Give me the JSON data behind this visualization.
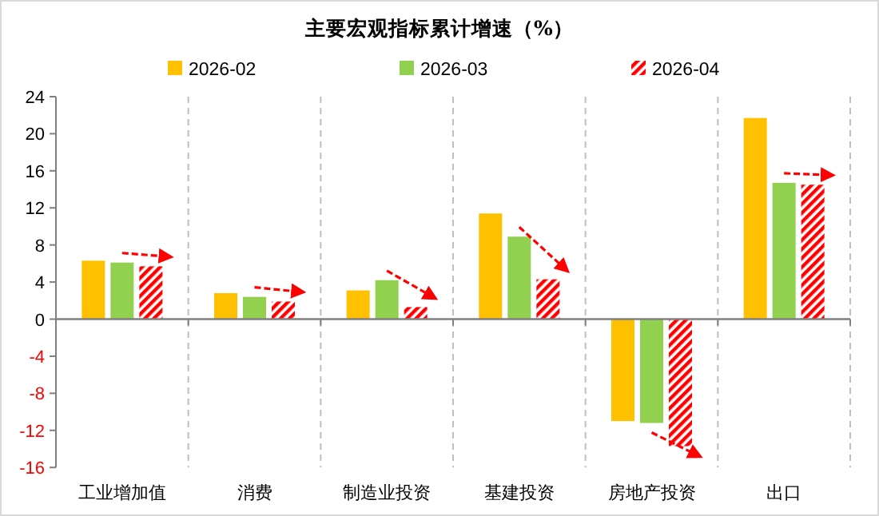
{
  "chart_data": {
    "type": "bar",
    "title": "主要宏观指标累计增速（%）",
    "categories": [
      "工业增加值",
      "消费",
      "制造业投资",
      "基建投资",
      "房地产投资",
      "出口"
    ],
    "series": [
      {
        "name": "2026-02",
        "color": "#ffc000",
        "values": [
          6.3,
          2.8,
          3.1,
          11.4,
          -11.0,
          21.7
        ]
      },
      {
        "name": "2026-03",
        "color": "#92d050",
        "values": [
          6.1,
          2.4,
          4.2,
          8.9,
          -11.2,
          14.7
        ]
      },
      {
        "name": "2026-04",
        "color": "#ff0000",
        "values": [
          5.7,
          1.9,
          1.3,
          4.3,
          -13.7,
          14.5
        ]
      }
    ],
    "ylim": [
      -16,
      24
    ],
    "yticks": [
      -16,
      -12,
      -8,
      -4,
      0,
      4,
      8,
      12,
      16,
      20,
      24
    ],
    "grid": "x",
    "legend": "top"
  }
}
